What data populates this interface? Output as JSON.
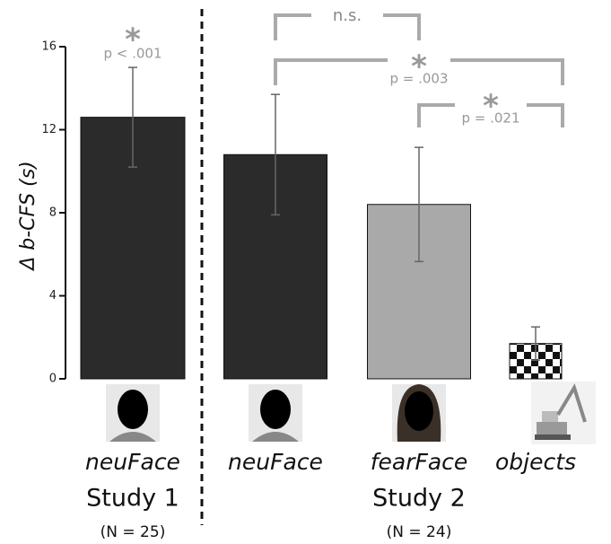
{
  "chart_data": {
    "type": "bar",
    "y_label": "Δ b-CFS (s)",
    "categories": [
      "neuFace",
      "neuFace",
      "fearFace",
      "objects"
    ],
    "values": [
      12.6,
      10.8,
      8.4,
      1.7
    ],
    "errors": [
      2.4,
      2.9,
      2.75,
      0.8
    ],
    "fills": [
      "#2b2b2b",
      "#2b2b2b",
      "#a9a9a9",
      "checkerboard"
    ],
    "ylim": [
      0,
      16
    ],
    "yticks": [
      0,
      4,
      8,
      12,
      16
    ],
    "groups": [
      {
        "label": "Study 1",
        "note": "(N = 25)"
      },
      {
        "label": "Study 2",
        "note": "(N = 24)"
      }
    ],
    "significance": [
      {
        "star": "*",
        "label": "p < .001"
      },
      {
        "label": "n.s."
      },
      {
        "star": "*",
        "label": "p = .003"
      },
      {
        "star": "*",
        "label": "p = .021"
      }
    ]
  }
}
